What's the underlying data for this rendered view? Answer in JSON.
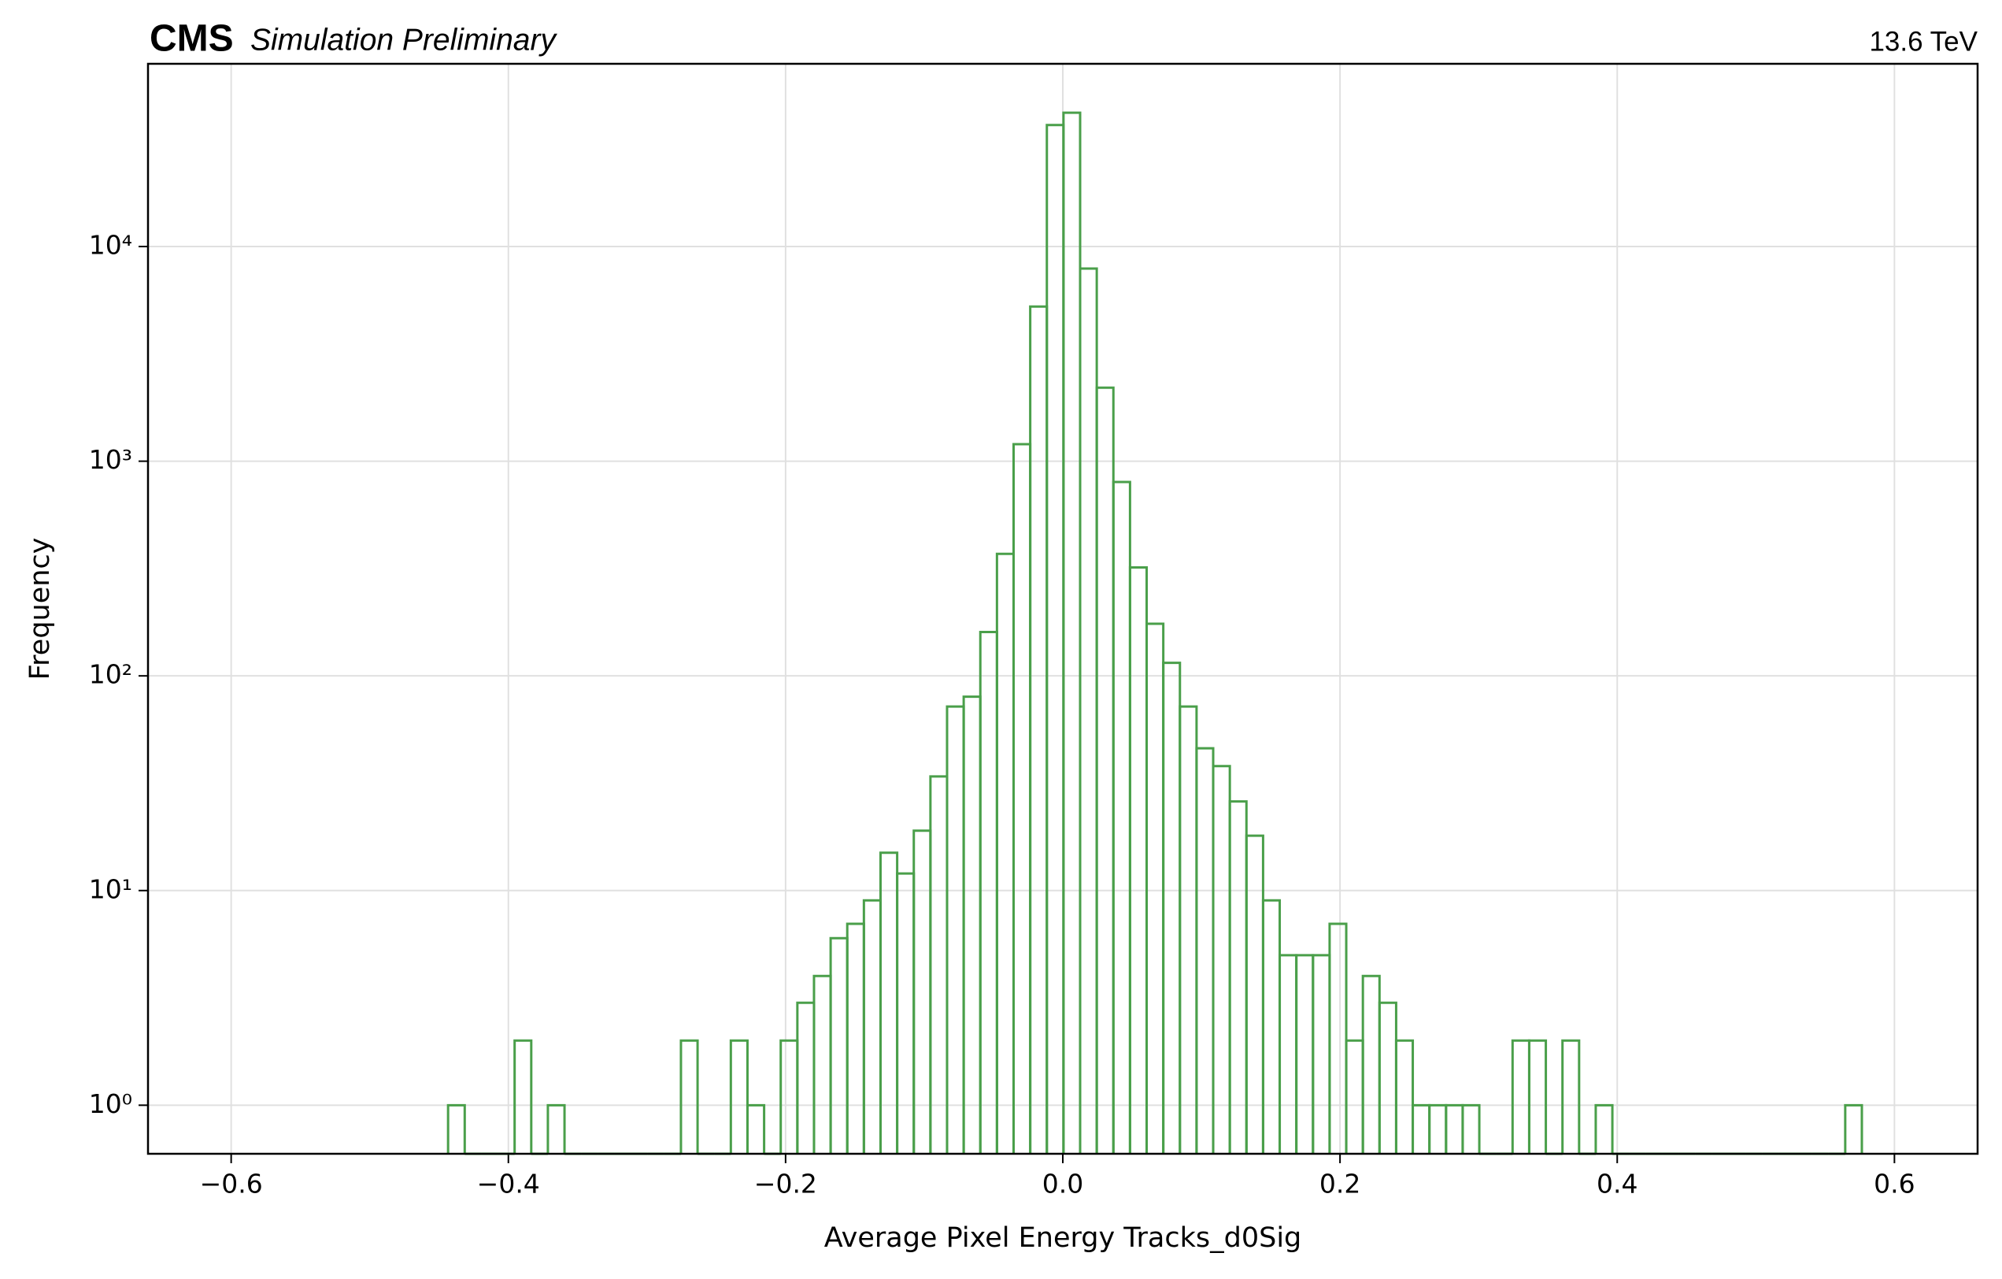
{
  "chart_data": {
    "type": "histogram",
    "experiment": "CMS",
    "subtitle": "Simulation Preliminary",
    "energy_label": "13.6 TeV",
    "xlabel": "Average Pixel Energy Tracks_d0Sig",
    "ylabel": "Frequency",
    "color": "#4a9f4a",
    "log_y": true,
    "grid": true,
    "bins": [
      -0.4435,
      -0.4315,
      -0.4195,
      -0.4075,
      -0.3955,
      -0.3835,
      -0.3715,
      -0.3595,
      -0.3475,
      -0.3355,
      -0.3235,
      -0.3115,
      -0.2995,
      -0.2875,
      -0.2755,
      -0.2635,
      -0.2515,
      -0.2395,
      -0.2275,
      -0.2155,
      -0.2035,
      -0.1915,
      -0.1795,
      -0.1675,
      -0.1555,
      -0.1435,
      -0.1315,
      -0.1195,
      -0.1075,
      -0.0955,
      -0.0835,
      -0.0715,
      -0.0595,
      -0.0475,
      -0.0355,
      -0.0235,
      -0.0115,
      0.0005,
      0.0125,
      0.0245,
      0.0365,
      0.0485,
      0.0605,
      0.0725,
      0.0845,
      0.0965,
      0.1085,
      0.1205,
      0.1325,
      0.1445,
      0.1565,
      0.1685,
      0.1805,
      0.1925,
      0.2045,
      0.2165,
      0.2285,
      0.2405,
      0.2525,
      0.2645,
      0.2765,
      0.2885,
      0.3005,
      0.3125,
      0.3245,
      0.3365,
      0.3485,
      0.3605,
      0.3725,
      0.3845,
      0.3965,
      0.4085,
      0.4205,
      0.4325,
      0.4445,
      0.4565,
      0.4685,
      0.4805,
      0.4925,
      0.5045,
      0.5165,
      0.5285,
      0.5405,
      0.5525,
      0.5645,
      0.5765
    ],
    "values": [
      1,
      0,
      0,
      0,
      2,
      0,
      1,
      0,
      0,
      0,
      0,
      0,
      0,
      0,
      2,
      0,
      0,
      2,
      1,
      0,
      2,
      3,
      4,
      6,
      7,
      9,
      15,
      12,
      19,
      34,
      72,
      80,
      160,
      370,
      1200,
      5250,
      36800,
      42000,
      7900,
      2200,
      800,
      320,
      175,
      115,
      72,
      46,
      38,
      26,
      18,
      9,
      5,
      5,
      5,
      7,
      2,
      4,
      3,
      2,
      1,
      1,
      1,
      1,
      0,
      0,
      2,
      2,
      0,
      2,
      0,
      1,
      0,
      0,
      0,
      0,
      0,
      0,
      0,
      0,
      0,
      0,
      0,
      0,
      0,
      0,
      1
    ],
    "xlim": [
      -0.66,
      0.66
    ],
    "ylim": [
      0.594,
      71000
    ],
    "xticks": [
      {
        "value": -0.6,
        "label": "−0.6"
      },
      {
        "value": -0.4,
        "label": "−0.4"
      },
      {
        "value": -0.2,
        "label": "−0.2"
      },
      {
        "value": 0,
        "label": "0.0"
      },
      0.2,
      0.4,
      0.6
    ],
    "yticks": [
      {
        "value": 1,
        "label": "10⁰"
      },
      {
        "value": 10,
        "label": "10¹"
      },
      {
        "value": 100,
        "label": "10²"
      },
      {
        "value": 1000,
        "label": "10³"
      },
      {
        "value": 10000,
        "label": "10⁴"
      }
    ]
  }
}
